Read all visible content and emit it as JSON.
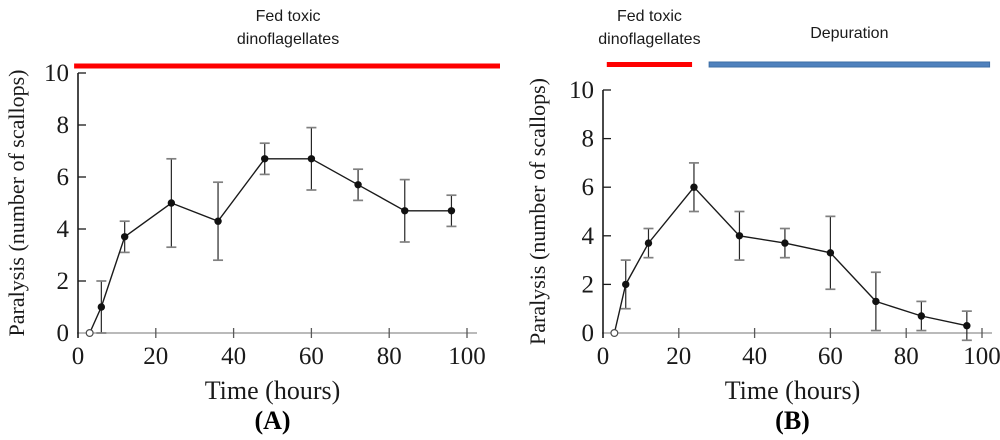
{
  "figure": {
    "background": "#ffffff",
    "accent_red": "#fe0000",
    "accent_blue": "#4f81bd",
    "panel_count": 2
  },
  "chart_data": [
    {
      "type": "line",
      "panel": "A",
      "caption": "(A)",
      "title": "",
      "xlabel": "Time (hours)",
      "ylabel": "Paralysis (number of scallops)",
      "xlim": [
        0,
        100
      ],
      "ylim": [
        0,
        10
      ],
      "xticks": [
        0,
        20,
        40,
        60,
        80,
        100
      ],
      "yticks": [
        0,
        2,
        4,
        6,
        8,
        10
      ],
      "grid": false,
      "legend": false,
      "phase_bars": [
        {
          "label": "Fed toxic dinoflagellates",
          "label_lines": [
            "Fed toxic",
            "dinoflagellates"
          ],
          "color": "#fe0000",
          "x_start": -1,
          "x_end": 109
        }
      ],
      "series": [
        {
          "marker": "filled-circle",
          "open_marker_indices": [
            0
          ],
          "x": [
            3,
            6,
            12,
            24,
            36,
            48,
            60,
            72,
            84,
            96
          ],
          "y": [
            0,
            1.0,
            3.7,
            5.0,
            4.3,
            6.7,
            6.7,
            5.7,
            4.7,
            4.7
          ],
          "yerr": [
            0,
            1.0,
            0.6,
            1.7,
            1.5,
            0.6,
            1.2,
            0.6,
            1.2,
            0.6
          ]
        }
      ]
    },
    {
      "type": "line",
      "panel": "B",
      "caption": "(B)",
      "title": "",
      "xlabel": "Time (hours)",
      "ylabel": "Paralysis (number of scallops)",
      "xlim": [
        0,
        100
      ],
      "ylim": [
        0,
        10
      ],
      "xticks": [
        0,
        20,
        40,
        60,
        80,
        100
      ],
      "yticks": [
        0,
        2,
        4,
        6,
        8,
        10
      ],
      "grid": false,
      "legend": false,
      "phase_bars": [
        {
          "label": "Fed toxic dinoflagellates",
          "label_lines": [
            "Fed toxic",
            "dinoflagellates"
          ],
          "color": "#fe0000",
          "x_start": 1,
          "x_end": 23.5
        },
        {
          "label": "Depuration",
          "label_lines": [
            "Depuration"
          ],
          "color": "#4f81bd",
          "stroke": "#3e6ea5",
          "x_start": 28,
          "x_end": 102
        }
      ],
      "series": [
        {
          "marker": "filled-circle",
          "open_marker_indices": [
            0
          ],
          "x": [
            3,
            6,
            12,
            24,
            36,
            48,
            60,
            72,
            84,
            96
          ],
          "y": [
            0,
            2.0,
            3.7,
            6.0,
            4.0,
            3.7,
            3.3,
            1.3,
            0.7,
            0.3
          ],
          "yerr": [
            0,
            1.0,
            0.6,
            1.0,
            1.0,
            0.6,
            1.5,
            1.2,
            0.6,
            0.6
          ]
        }
      ]
    }
  ]
}
